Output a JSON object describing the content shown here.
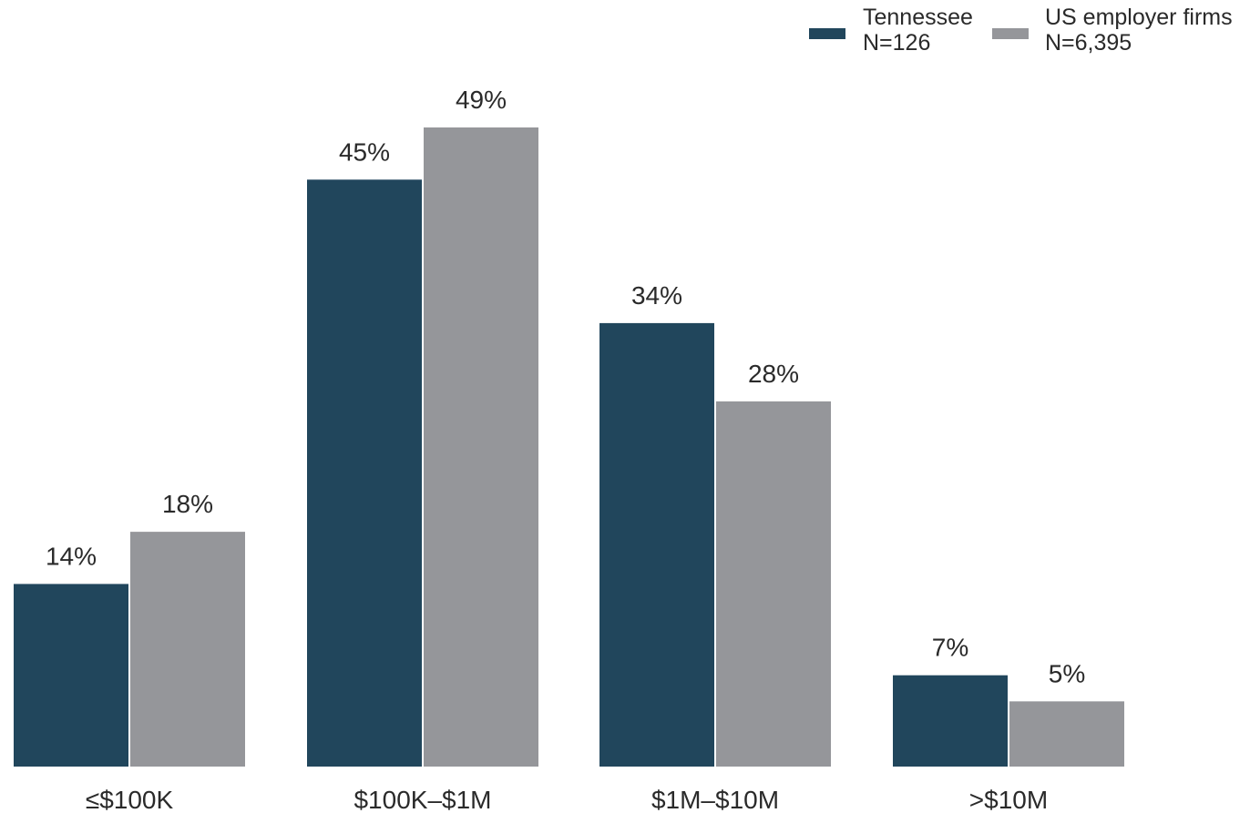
{
  "chart_data": {
    "type": "bar",
    "categories": [
      "≤$100K",
      "$100K–$1M",
      "$1M–$10M",
      ">$10M"
    ],
    "series": [
      {
        "name": "Tennessee",
        "sample": "N=126",
        "color": "#21465c",
        "values": [
          14,
          45,
          34,
          7
        ],
        "labels": [
          "14%",
          "45%",
          "34%",
          "7%"
        ]
      },
      {
        "name": "US employer firms",
        "sample": "N=6,395",
        "color": "#95969a",
        "values": [
          18,
          49,
          28,
          5
        ],
        "labels": [
          "18%",
          "49%",
          "28%",
          "5%"
        ]
      }
    ],
    "title": "",
    "xlabel": "",
    "ylabel": "",
    "ylim": [
      0,
      49
    ],
    "grid": false,
    "legend_position": "top-right"
  }
}
